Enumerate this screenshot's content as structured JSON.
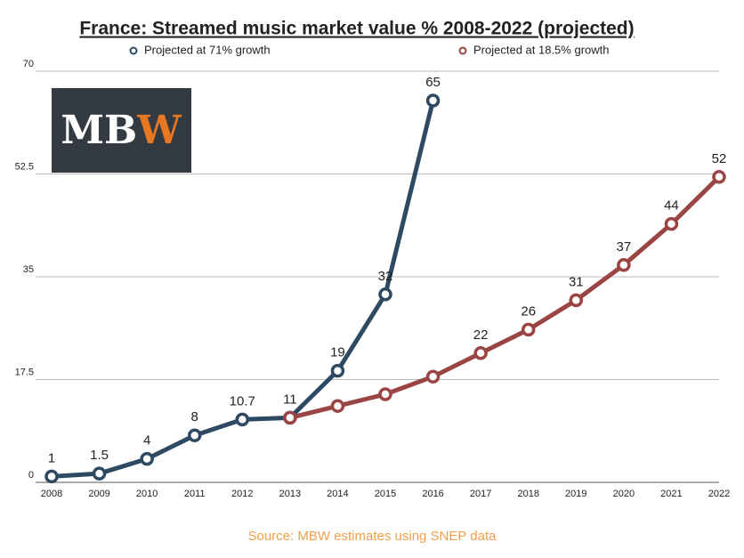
{
  "chart_data": {
    "type": "line",
    "title": "France: Streamed music market value % 2008-2022 (projected)",
    "logo": "MBW",
    "source": "Source: MBW estimates using SNEP data",
    "categories": [
      "2008",
      "2009",
      "2010",
      "2011",
      "2012",
      "2013",
      "2014",
      "2015",
      "2016",
      "2017",
      "2018",
      "2019",
      "2020",
      "2021",
      "2022"
    ],
    "series": [
      {
        "name": "Projected at 71% growth",
        "color": "#2e4a62",
        "values": [
          1,
          1.5,
          4,
          8,
          10.7,
          11,
          19,
          32,
          65,
          null,
          null,
          null,
          null,
          null,
          null
        ]
      },
      {
        "name": "Projected at 18.5% growth",
        "color": "#9a4444",
        "values": [
          null,
          null,
          null,
          null,
          null,
          11,
          13,
          15,
          18,
          22,
          26,
          31,
          37,
          44,
          52
        ]
      }
    ],
    "ylim": [
      0,
      70
    ],
    "yticks": [
      0,
      17.5,
      35,
      52.5,
      70
    ],
    "grid": true
  }
}
